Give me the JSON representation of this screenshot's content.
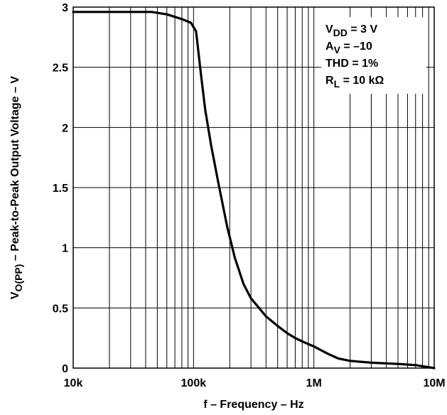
{
  "chart_data": {
    "type": "line",
    "x_scale": "log",
    "xlabel": "f – Frequency – Hz",
    "ylabel": {
      "prefix": "V",
      "sub": "O(PP)",
      "suffix": " – Peak-to-Peak Output Voltage – V"
    },
    "xlim": [
      10000,
      10000000
    ],
    "ylim": [
      0,
      3
    ],
    "x_ticks": [
      {
        "value": 10000,
        "label": "10k"
      },
      {
        "value": 100000,
        "label": "100k"
      },
      {
        "value": 1000000,
        "label": "1M"
      },
      {
        "value": 10000000,
        "label": "10M"
      }
    ],
    "y_ticks": [
      {
        "value": 0,
        "label": "0"
      },
      {
        "value": 0.5,
        "label": "0.5"
      },
      {
        "value": 1,
        "label": "1"
      },
      {
        "value": 1.5,
        "label": "1.5"
      },
      {
        "value": 2,
        "label": "2"
      },
      {
        "value": 2.5,
        "label": "2.5"
      },
      {
        "value": 3,
        "label": "3"
      }
    ],
    "grid": true,
    "legend_position": "top-right",
    "annotations": [
      {
        "main": "V",
        "sub": "DD",
        "rest": " = 3 V"
      },
      {
        "main": "A",
        "sub": "V",
        "rest": " = –10"
      },
      {
        "main": "THD = 1%",
        "sub": "",
        "rest": ""
      },
      {
        "main": "R",
        "sub": "L",
        "rest": " = 10 kΩ"
      }
    ],
    "series": [
      {
        "x": [
          10000,
          20000,
          30000,
          45000,
          60000,
          80000,
          95000,
          105000,
          115000,
          125000,
          140000,
          160000,
          190000,
          220000,
          260000,
          300000,
          350000,
          400000,
          500000,
          600000,
          700000,
          850000,
          1000000,
          1300000,
          1600000,
          2000000,
          3000000,
          5000000,
          7000000,
          10000000
        ],
        "y": [
          2.96,
          2.96,
          2.96,
          2.96,
          2.94,
          2.9,
          2.87,
          2.8,
          2.45,
          2.15,
          1.85,
          1.55,
          1.18,
          0.92,
          0.7,
          0.58,
          0.5,
          0.43,
          0.35,
          0.29,
          0.25,
          0.21,
          0.18,
          0.12,
          0.08,
          0.06,
          0.045,
          0.035,
          0.025,
          0.0
        ]
      }
    ]
  }
}
